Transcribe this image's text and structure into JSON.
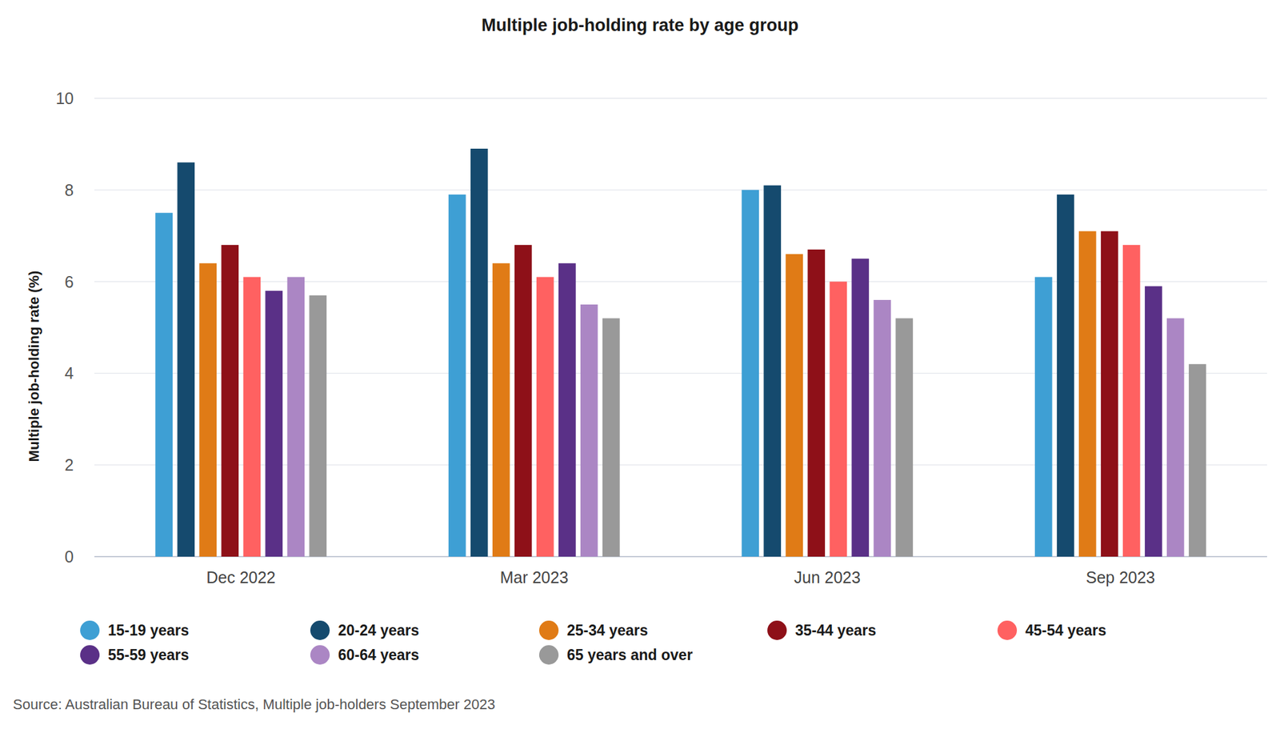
{
  "chart_data": {
    "type": "bar",
    "title": "Multiple job-holding rate by age group",
    "y_label": "Multiple job-holding rate (%)",
    "source": "Source: Australian Bureau of Statistics, Multiple job-holders September 2023",
    "categories": [
      "Dec 2022",
      "Mar 2023",
      "Jun 2023",
      "Sep 2023"
    ],
    "series": [
      {
        "name": "15-19 years",
        "color": "#3e9fd4",
        "values": [
          7.5,
          7.9,
          8.0,
          6.1
        ]
      },
      {
        "name": "20-24 years",
        "color": "#154a6e",
        "values": [
          8.6,
          8.9,
          8.1,
          7.9
        ]
      },
      {
        "name": "25-34 years",
        "color": "#e07b16",
        "values": [
          6.4,
          6.4,
          6.6,
          7.1
        ]
      },
      {
        "name": "35-44 years",
        "color": "#8e1018",
        "values": [
          6.8,
          6.8,
          6.7,
          7.1
        ]
      },
      {
        "name": "45-54 years",
        "color": "#ff6161",
        "values": [
          6.1,
          6.1,
          6.0,
          6.8
        ]
      },
      {
        "name": "55-59 years",
        "color": "#5a3087",
        "values": [
          5.8,
          6.4,
          6.5,
          5.9
        ]
      },
      {
        "name": "60-64 years",
        "color": "#ab86c4",
        "values": [
          6.1,
          5.5,
          5.6,
          5.2
        ]
      },
      {
        "name": "65 years and over",
        "color": "#999999",
        "values": [
          5.7,
          5.2,
          5.2,
          4.2
        ]
      }
    ],
    "ylim": [
      0,
      10
    ],
    "yticks": [
      0,
      2,
      4,
      6,
      8,
      10
    ],
    "grid": true,
    "legend": "bottom"
  }
}
